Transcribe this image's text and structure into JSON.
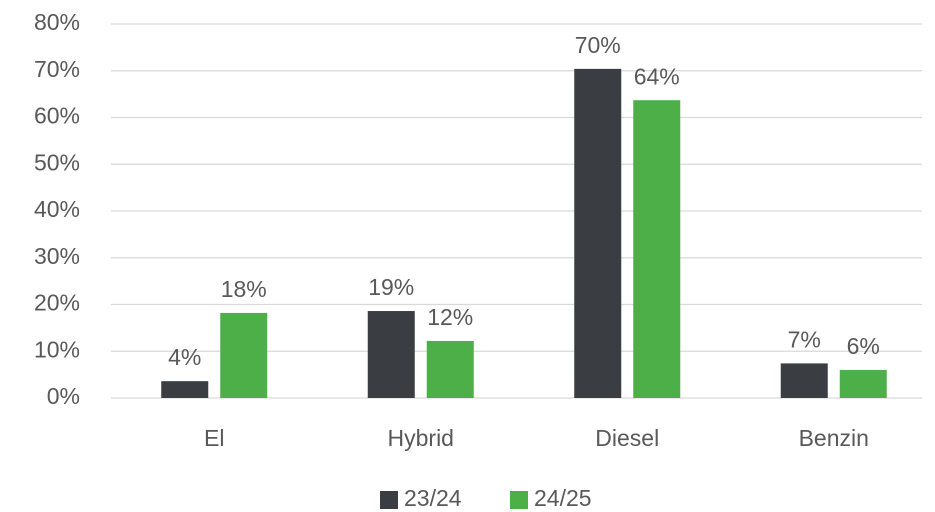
{
  "chart_data": {
    "type": "bar",
    "categories": [
      "El",
      "Hybrid",
      "Diesel",
      "Benzin"
    ],
    "series": [
      {
        "name": "23/24",
        "color": "#3a3d42",
        "values": [
          3.6,
          18.6,
          70.4,
          7.4
        ],
        "value_labels": [
          "4%",
          "19%",
          "70%",
          "7%"
        ]
      },
      {
        "name": "24/25",
        "color": "#4caf48",
        "values": [
          18.2,
          12.2,
          63.7,
          6.0
        ],
        "value_labels": [
          "18%",
          "12%",
          "64%",
          "6%"
        ]
      }
    ],
    "ylim": [
      0,
      80
    ],
    "yticks": [
      {
        "value": 0,
        "label": "0%"
      },
      {
        "value": 10,
        "label": "10%"
      },
      {
        "value": 20,
        "label": "20%"
      },
      {
        "value": 30,
        "label": "30%"
      },
      {
        "value": 40,
        "label": "40%"
      },
      {
        "value": 50,
        "label": "50%"
      },
      {
        "value": 60,
        "label": "60%"
      },
      {
        "value": 70,
        "label": "70%"
      },
      {
        "value": 80,
        "label": "80%"
      }
    ],
    "grid": true,
    "legend": "bottom"
  }
}
